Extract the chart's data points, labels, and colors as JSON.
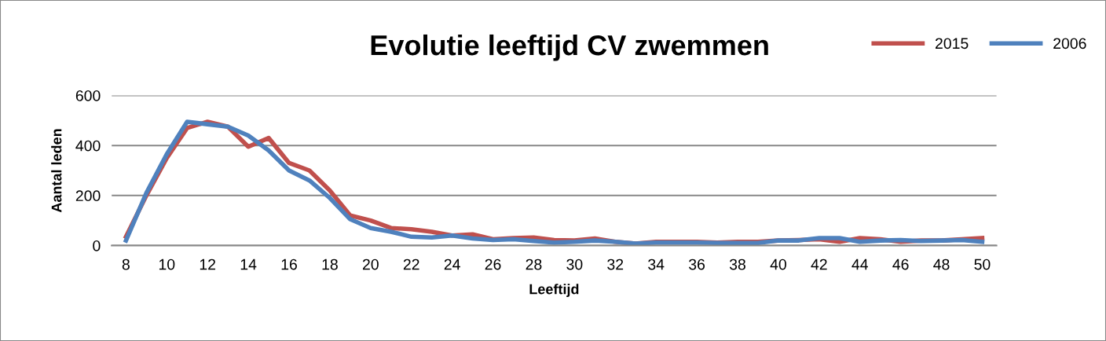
{
  "chart_data": {
    "type": "line",
    "title": "Evolutie leeftijd CV zwemmen",
    "xlabel": "Leeftijd",
    "ylabel": "Aantal leden",
    "categories": [
      "8",
      null,
      "10",
      null,
      "12",
      null,
      "14",
      null,
      "16",
      null,
      "18",
      null,
      "20",
      null,
      "22",
      null,
      "24",
      null,
      "26",
      null,
      "28",
      null,
      "30",
      null,
      "32",
      null,
      "34",
      null,
      "36",
      null,
      "38",
      null,
      "40",
      null,
      "42",
      null,
      "44",
      null,
      "46",
      null,
      "48",
      null,
      "50"
    ],
    "series": [
      {
        "name": "2015",
        "color": "#c0504d",
        "values": [
          35,
          200,
          350,
          470,
          495,
          475,
          395,
          430,
          330,
          300,
          220,
          120,
          100,
          70,
          65,
          55,
          40,
          45,
          25,
          30,
          32,
          22,
          20,
          28,
          15,
          8,
          15,
          15,
          15,
          12,
          15,
          15,
          20,
          22,
          25,
          15,
          30,
          25,
          15,
          20,
          20,
          25,
          30
        ]
      },
      {
        "name": "2006",
        "color": "#4f81bd",
        "values": [
          20,
          210,
          365,
          495,
          485,
          475,
          440,
          380,
          300,
          260,
          190,
          105,
          70,
          55,
          35,
          32,
          40,
          28,
          22,
          25,
          18,
          12,
          15,
          20,
          15,
          8,
          12,
          12,
          12,
          10,
          10,
          10,
          20,
          20,
          30,
          30,
          15,
          20,
          22,
          18,
          20,
          22,
          15
        ]
      }
    ],
    "ylim": [
      0,
      600
    ],
    "yticks": [
      0,
      200,
      400,
      600
    ],
    "grid": "y",
    "legend": "top right",
    "marker": "none",
    "line_style": "solid"
  }
}
